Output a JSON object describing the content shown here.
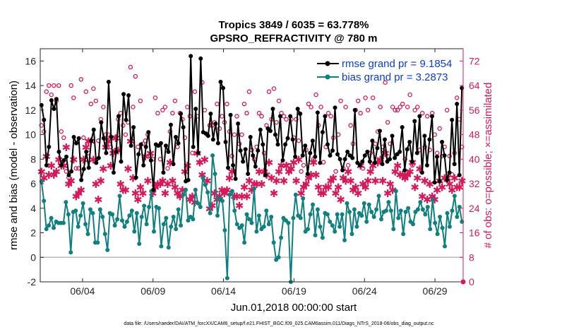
{
  "chart_data": {
    "type": "line",
    "title": "Tropics 3849 / 6035 = 63.778%",
    "subtitle": "GPSRO_REFRACTIVITY @ 780 m",
    "xlabel": "Jun.01,2018 00:00:00 start",
    "ylabel": "rmse and bias (model - observation)",
    "y2label": "# of obs: o=possible; ×=assimilated",
    "x_tick_labels": [
      "06/04",
      "06/09",
      "06/14",
      "06/19",
      "06/24",
      "06/29"
    ],
    "x_tick_days": [
      4,
      9,
      14,
      19,
      24,
      29
    ],
    "xlim": [
      1,
      31
    ],
    "ylim": [
      -2,
      17
    ],
    "y_ticks": [
      -2,
      0,
      2,
      4,
      6,
      8,
      10,
      12,
      14,
      16
    ],
    "y2lim": [
      0,
      76
    ],
    "y2_ticks": [
      0,
      8,
      16,
      24,
      32,
      40,
      48,
      56,
      64,
      72
    ],
    "legend": [
      "rmse grand pr = 9.1854",
      "bias grand pr = 3.2873"
    ],
    "legend_position": "top-right",
    "footnote": "data file: /Users/raeder/DAI/ATM_forcXX/CAM6_setup/f.e21.FHIST_BGC.f09_025.CAM6assim.011/Diags_NTrS_2018-06/obs_diag_output.nc",
    "colors": {
      "rmse": "#000000",
      "bias": "#0f8080",
      "obs": "#d6195a",
      "zero": "#b8b8b8",
      "axis2": "#d6195a"
    },
    "series": [
      {
        "name": "rmse",
        "values": [
          12.4,
          11.2,
          7.5,
          9,
          12.8,
          12.1,
          12.9,
          8.6,
          7.5,
          7.9,
          8.2,
          6.7,
          7,
          9.8,
          9.3,
          9.7,
          6.3,
          7.2,
          8.6,
          7.3,
          9.5,
          10.4,
          7.7,
          8.1,
          11,
          9.7,
          8.5,
          14.3,
          9.8,
          6.9,
          8.6,
          11.5,
          7.8,
          13.3,
          11.2,
          13.2,
          9.1,
          10.6,
          6.5,
          8.4,
          9.2,
          7.5,
          9,
          10.2,
          7.9,
          5.5,
          9.2,
          9.1,
          9.3,
          6.9,
          9.1,
          8.6,
          10.8,
          7.6,
          9.8,
          9.3,
          11.7,
          10.6,
          6.2,
          6.3,
          16.4,
          9,
          12.1,
          8.5,
          16.2,
          10.2,
          10.1,
          9.9,
          11.7,
          9.6,
          10.9,
          9.3,
          14.3,
          13.8,
          9.4,
          7.3,
          11.6,
          7.5,
          6.4,
          10.9,
          8.7,
          7.8,
          8.8,
          6.8,
          9.8,
          8.3,
          7.4,
          8.7,
          10.4,
          9.2,
          6.7,
          10.5,
          10.3,
          12.1,
          10,
          9.2,
          11.5,
          7.9,
          9.2,
          9.7,
          11.5,
          9.6,
          8.2,
          12.1,
          11.7,
          8.3,
          9.1,
          6.8,
          8.5,
          9.5,
          8.2,
          11.8,
          7.7,
          10.2,
          11.5,
          9.2,
          8.3,
          8.7,
          12.2,
          8.4,
          8,
          7.1,
          8,
          8.6,
          8.3,
          8.1,
          12,
          7.7,
          7.5,
          7.8,
          8.3,
          8.6,
          7.8,
          9.5,
          7.7,
          8.9,
          10.3,
          7.6,
          9.6,
          7.8,
          8,
          9.9,
          8.1,
          8.4,
          8.6,
          10.6,
          7.1,
          8.8,
          9.4,
          7.8,
          11.1,
          8.5,
          11.5,
          6.9,
          9.9,
          7.5,
          9.6,
          11.5,
          6.1,
          8.2,
          6.2,
          9.4,
          8.3,
          6.3,
          6.9,
          11.2,
          7.6,
          12.5,
          6.7,
          13.8
        ]
      },
      {
        "name": "bias",
        "values": [
          6.2,
          4.6,
          2.3,
          2.6,
          3.2,
          2.4,
          2.9,
          2.8,
          2.8,
          2.8,
          4.5,
          3.5,
          0.4,
          3.7,
          3.8,
          2.5,
          3.4,
          4.4,
          2.7,
          1.9,
          3.9,
          3.6,
          1.2,
          1.2,
          3.9,
          3.3,
          1.9,
          0.6,
          3.6,
          3.5,
          2.6,
          3.1,
          5,
          3,
          2.5,
          2.9,
          3.4,
          3.8,
          2.1,
          3.6,
          1.1,
          3.3,
          4.2,
          2.7,
          4.1,
          5.4,
          2.1,
          4.1,
          4,
          0.9,
          2.7,
          3.2,
          0.8,
          2.5,
          3.3,
          2.3,
          3.9,
          2.6,
          5.1,
          5.5,
          3,
          3.3,
          3.1,
          5.5,
          4.4,
          4.1,
          6.5,
          5.9,
          5.3,
          3.6,
          8.3,
          6.8,
          3.4,
          4.8,
          4.6,
          2.2,
          -1.7,
          5.1,
          5.4,
          3.8,
          2.7,
          2.4,
          2.6,
          1.2,
          3.5,
          3.1,
          2.8,
          5.6,
          2.1,
          3.4,
          2.3,
          2.5,
          3.8,
          2.7,
          3.3,
          1.2,
          -0.2,
          0,
          1.6,
          3.2,
          3,
          2.8,
          -2,
          3.2,
          5.1,
          3.4,
          3.2,
          4.8,
          2.1,
          2.3,
          3.5,
          4.3,
          1.8,
          3.9,
          2.5,
          1.6,
          3.6,
          3.5,
          2.9,
          2.6,
          2.1,
          3.5,
          2.5,
          3.5,
          1.4,
          4.4,
          3.7,
          1.9,
          3.9,
          2.5,
          3.6,
          3.4,
          4.4,
          2.9,
          4.3,
          3.7,
          3.3,
          3.9,
          5,
          3.1,
          3.7,
          3.8,
          4.5,
          3.8,
          2.3,
          5.4,
          3.2,
          3.8,
          1.9,
          3.7,
          4,
          2.9,
          2.7,
          3.7,
          3.9,
          4.5,
          3.9,
          3.5,
          4.1,
          2.3,
          4.7,
          2.8,
          1.9,
          3.3,
          2.4,
          0.9,
          3.6,
          2.5,
          3.8,
          5,
          3.3,
          4.1,
          2.9
        ]
      },
      {
        "name": "obs_possible",
        "values": [
          51,
          49,
          62,
          64,
          61,
          64,
          59,
          64,
          49,
          47,
          36,
          34,
          64,
          60,
          37,
          37,
          66,
          47,
          62,
          42,
          58,
          63,
          59,
          46,
          53,
          57,
          48,
          48,
          44,
          47,
          43,
          53,
          55,
          51,
          48,
          52,
          70,
          57,
          67,
          44,
          59,
          45,
          46,
          48,
          41,
          40,
          60,
          55,
          40,
          56,
          57,
          37,
          49,
          55,
          59,
          44,
          55,
          53,
          47,
          57,
          54,
          42,
          62,
          54,
          39,
          65,
          56,
          48,
          51,
          51,
          52,
          58,
          50,
          54,
          52,
          58,
          49,
          41,
          48,
          54,
          45,
          48,
          58,
          55,
          62,
          43,
          40,
          44,
          55,
          54,
          42,
          51,
          62,
          53,
          63,
          52,
          59,
          55,
          54,
          53,
          38,
          53,
          47,
          53,
          46,
          36,
          38,
          43,
          58,
          57,
          40,
          61,
          51,
          57,
          39,
          44,
          55,
          54,
          47,
          36,
          48,
          59,
          37,
          57,
          38,
          51,
          45,
          56,
          59,
          55,
          37,
          60,
          56,
          42,
          60,
          45,
          49,
          57,
          44,
          65,
          52,
          45,
          57,
          56,
          56,
          57,
          58,
          40,
          57,
          61,
          38,
          56,
          57,
          43,
          55,
          44,
          54,
          43,
          55,
          48,
          42,
          50,
          41,
          44,
          56,
          41,
          35,
          42,
          60,
          53,
          44
        ]
      },
      {
        "name": "obs_assimilated",
        "values": [
          36,
          34,
          41,
          35,
          38,
          35,
          36,
          40,
          38,
          38,
          44,
          32,
          33,
          40,
          28,
          29,
          30,
          40,
          44,
          46,
          46,
          40,
          32,
          27,
          33,
          37,
          44,
          46,
          38,
          42,
          47,
          43,
          32,
          30,
          30,
          37,
          46,
          34,
          29,
          27,
          31,
          29,
          41,
          33,
          42,
          29,
          31,
          32,
          32,
          33,
          29,
          32,
          39,
          33,
          31,
          29,
          28,
          30,
          36,
          38,
          27,
          28,
          26,
          42,
          39,
          35,
          40,
          33,
          24,
          25,
          29,
          27,
          28,
          30,
          29,
          30,
          34,
          36,
          28,
          28,
          25,
          28,
          31,
          28,
          33,
          30,
          32,
          32,
          36,
          32,
          36,
          35,
          39,
          34,
          29,
          33,
          36,
          38,
          33,
          38,
          36,
          37,
          39,
          33,
          40,
          29,
          31,
          32,
          34,
          35,
          39,
          35,
          31,
          29,
          29,
          31,
          31,
          33,
          34,
          29,
          31,
          27,
          34,
          33,
          36,
          33,
          30,
          31,
          29,
          38,
          32,
          31,
          33,
          36,
          38,
          33,
          39,
          40,
          33,
          42,
          29,
          32,
          30,
          36,
          38,
          35,
          35,
          34,
          35,
          36,
          39,
          31,
          34,
          37,
          28,
          33,
          27,
          32,
          28,
          27,
          30,
          33,
          31,
          34,
          34,
          32,
          30,
          34,
          31,
          31,
          33
        ]
      }
    ]
  }
}
